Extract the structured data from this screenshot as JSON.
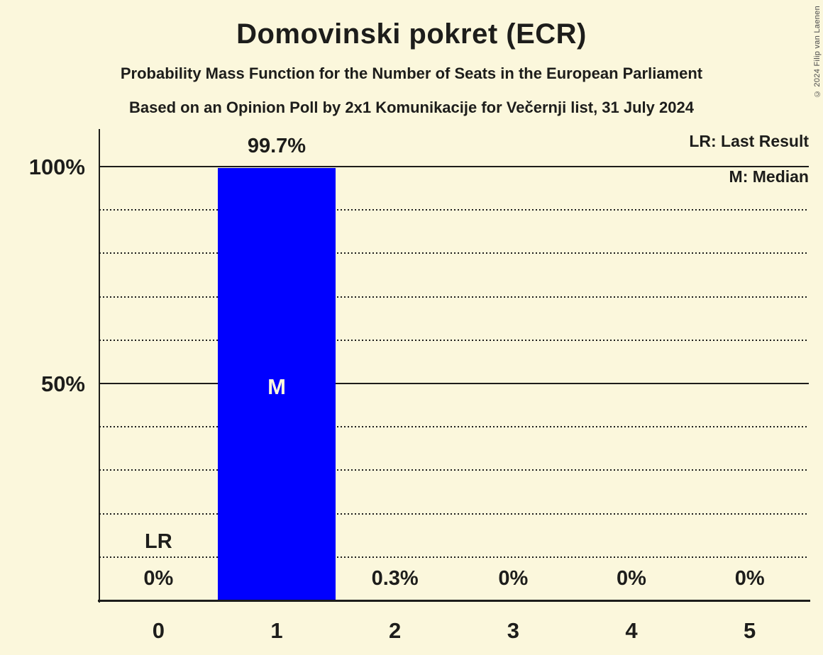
{
  "meta": {
    "copyright": "© 2024 Filip van Laenen"
  },
  "header": {
    "title": "Domovinski pokret (ECR)",
    "subtitle": "Probability Mass Function for the Number of Seats in the European Parliament",
    "source_line": "Based on an Opinion Poll by 2x1 Komunikacije for Večernji list, 31 July 2024"
  },
  "legend": {
    "last_result": "LR: Last Result",
    "median": "M: Median"
  },
  "chart_data": {
    "type": "bar",
    "title": "Domovinski pokret (ECR)",
    "xlabel": "",
    "ylabel": "",
    "categories": [
      "0",
      "1",
      "2",
      "3",
      "4",
      "5"
    ],
    "values": [
      0,
      99.7,
      0.3,
      0,
      0,
      0
    ],
    "value_labels": [
      "0%",
      "99.7%",
      "0.3%",
      "0%",
      "0%",
      "0%"
    ],
    "y_axis": {
      "range": [
        0,
        100
      ],
      "unit": "%",
      "ticks": [
        {
          "label": "100%",
          "value": 100
        },
        {
          "label": "50%",
          "value": 50
        }
      ],
      "solid_gridlines": [
        100,
        50
      ],
      "dotted_gridlines": [
        90,
        80,
        70,
        60,
        40,
        30,
        20,
        10
      ]
    },
    "annotations": {
      "median_label": "M",
      "median_category_index": 1,
      "last_result_label": "LR",
      "last_result_category_index": 0
    },
    "legend_position": "top-right",
    "grid": "horizontal-dotted",
    "colors": {
      "background": "#FBF7DC",
      "bar": "#0000FF",
      "text": "#1D1D1B",
      "median_text": "#FBF7DC"
    }
  }
}
